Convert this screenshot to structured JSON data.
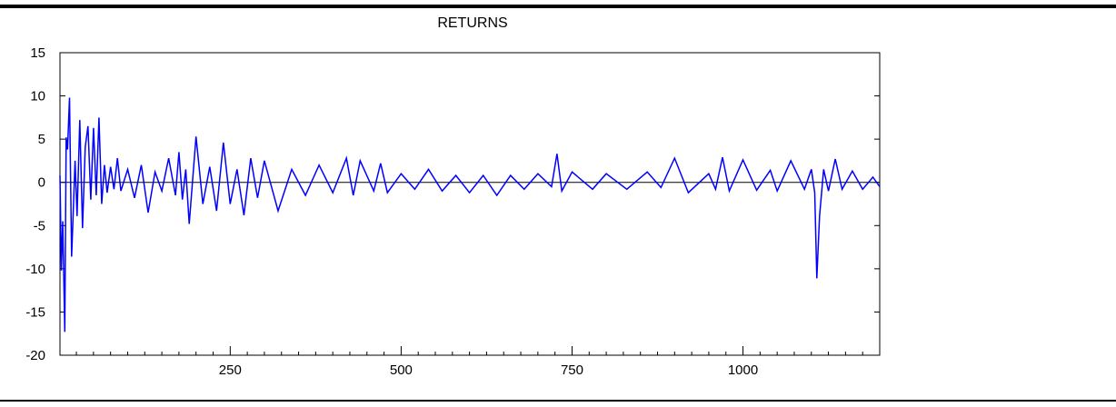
{
  "chart_data": {
    "type": "line",
    "title": "RETURNS",
    "xlabel": "",
    "ylabel": "",
    "xlim": [
      1,
      1200
    ],
    "ylim": [
      -20,
      15
    ],
    "x_ticks": [
      250,
      500,
      750,
      1000
    ],
    "x_tick_labels": [
      "250",
      "500",
      "750",
      "1000"
    ],
    "y_ticks": [
      15,
      10,
      5,
      0,
      -5,
      -10,
      -15,
      -20
    ],
    "y_tick_labels": [
      "15",
      "10",
      "5",
      "0",
      "-5",
      "-10",
      "-15",
      "-20"
    ],
    "grid": false,
    "legend": "none",
    "series": [
      {
        "color": "#0000ff",
        "x": [
          1,
          3,
          5,
          8,
          10,
          12,
          15,
          18,
          20,
          23,
          26,
          30,
          34,
          38,
          42,
          46,
          50,
          54,
          58,
          62,
          66,
          70,
          75,
          80,
          85,
          90,
          100,
          110,
          120,
          130,
          140,
          150,
          160,
          170,
          175,
          180,
          185,
          190,
          200,
          210,
          220,
          230,
          240,
          250,
          260,
          270,
          280,
          290,
          300,
          320,
          340,
          360,
          380,
          400,
          420,
          430,
          440,
          460,
          470,
          480,
          500,
          520,
          540,
          560,
          580,
          600,
          620,
          640,
          660,
          680,
          700,
          720,
          728,
          735,
          750,
          780,
          800,
          830,
          860,
          880,
          900,
          920,
          950,
          960,
          970,
          980,
          1000,
          1020,
          1040,
          1050,
          1070,
          1090,
          1100,
          1105,
          1108,
          1112,
          1118,
          1125,
          1135,
          1145,
          1160,
          1175,
          1190,
          1200
        ],
        "y": [
          0.8,
          -10.2,
          -4.5,
          -17.3,
          5.2,
          3.8,
          9.8,
          -8.6,
          -4.3,
          2.5,
          -3.9,
          7.2,
          -5.3,
          4.1,
          6.5,
          -2.0,
          6.3,
          -1.5,
          7.5,
          -2.5,
          2.0,
          -1.2,
          1.8,
          -0.8,
          2.8,
          -1.0,
          1.5,
          -1.8,
          2.0,
          -3.5,
          1.2,
          -1.0,
          2.8,
          -1.5,
          3.5,
          -2.0,
          1.5,
          -4.8,
          5.3,
          -2.5,
          1.8,
          -3.3,
          4.6,
          -2.5,
          1.5,
          -3.8,
          2.8,
          -1.8,
          2.5,
          -3.3,
          1.5,
          -1.5,
          2.0,
          -1.2,
          2.8,
          -1.5,
          2.5,
          -1.0,
          2.2,
          -1.2,
          1.0,
          -0.8,
          1.5,
          -1.0,
          0.8,
          -1.2,
          0.8,
          -1.5,
          0.8,
          -0.8,
          1.0,
          -0.5,
          3.3,
          -1.0,
          1.2,
          -0.8,
          1.0,
          -0.8,
          1.2,
          -0.6,
          2.8,
          -1.2,
          1.0,
          -0.8,
          2.9,
          -1.0,
          2.6,
          -0.9,
          1.4,
          -1.0,
          2.5,
          -0.8,
          1.5,
          -1.2,
          -11.1,
          -3.9,
          1.5,
          -1.0,
          2.7,
          -0.8,
          1.3,
          -0.8,
          0.6,
          -0.5
        ]
      }
    ]
  }
}
